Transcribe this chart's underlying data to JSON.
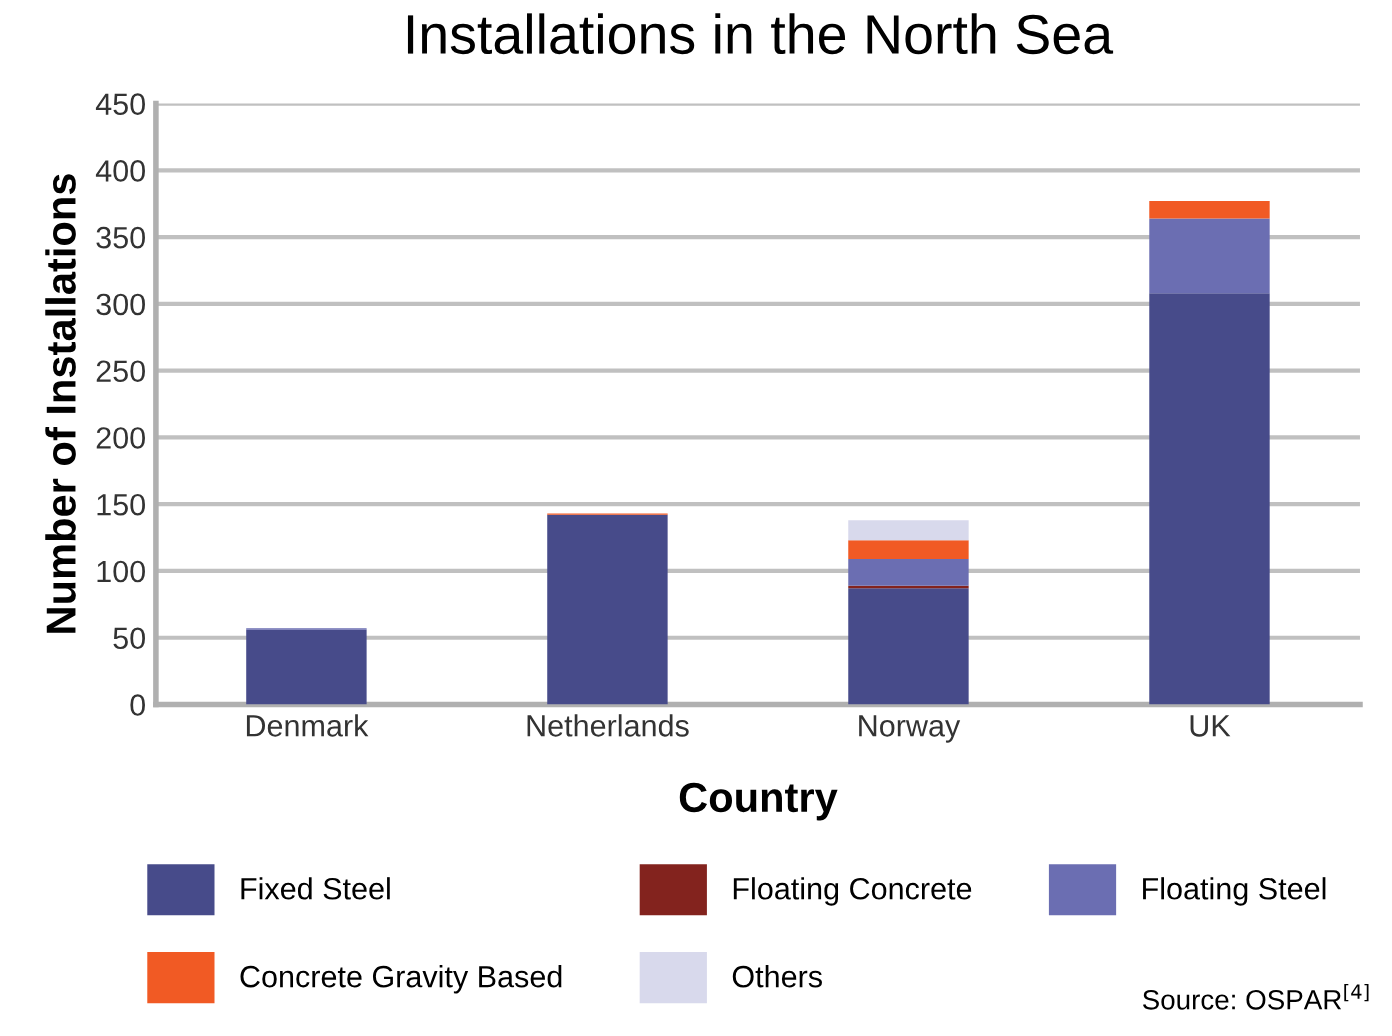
{
  "chart_data": {
    "type": "bar",
    "title": "Installations in the North Sea",
    "xlabel": "Country",
    "ylabel": "Number of Installations",
    "categories": [
      "Denmark",
      "Netherlands",
      "Norway",
      "UK"
    ],
    "stacked": true,
    "series": [
      {
        "name": "Fixed Steel",
        "color": "#474b8a",
        "values": [
          56,
          142,
          87,
          308
        ]
      },
      {
        "name": "Floating Concrete",
        "color": "#83231e",
        "values": [
          0,
          0,
          2,
          0
        ]
      },
      {
        "name": "Floating Steel",
        "color": "#6b6eb2",
        "values": [
          1,
          0,
          20,
          56
        ]
      },
      {
        "name": "Concrete Gravity Based",
        "color": "#f15a24",
        "values": [
          0,
          1,
          14,
          13
        ]
      },
      {
        "name": "Others",
        "color": "#d8d9ec",
        "values": [
          0,
          0,
          15,
          null
        ]
      }
    ],
    "ylim": [
      0,
      450
    ],
    "yticks": [
      0,
      50,
      100,
      150,
      200,
      250,
      300,
      350,
      400,
      450
    ],
    "grid": "y",
    "legend": "bottom",
    "annotations": [
      "Source: OSPAR$^{[4]}$"
    ]
  }
}
